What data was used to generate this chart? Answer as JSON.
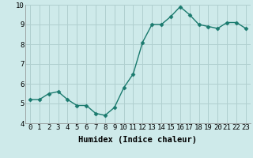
{
  "x": [
    0,
    1,
    2,
    3,
    4,
    5,
    6,
    7,
    8,
    9,
    10,
    11,
    12,
    13,
    14,
    15,
    16,
    17,
    18,
    19,
    20,
    21,
    22,
    23
  ],
  "y": [
    5.2,
    5.2,
    5.5,
    5.6,
    5.2,
    4.9,
    4.9,
    4.5,
    4.4,
    4.8,
    5.8,
    6.5,
    8.1,
    9.0,
    9.0,
    9.4,
    9.9,
    9.5,
    9.0,
    8.9,
    8.8,
    9.1,
    9.1,
    8.8
  ],
  "line_color": "#1a7a6e",
  "marker": "D",
  "marker_size": 2.5,
  "bg_color": "#ceeaea",
  "grid_color": "#b0cfcf",
  "xlabel": "Humidex (Indice chaleur)",
  "ylim": [
    4,
    10
  ],
  "xlim": [
    -0.5,
    23.5
  ],
  "yticks": [
    4,
    5,
    6,
    7,
    8,
    9,
    10
  ],
  "xticks": [
    0,
    1,
    2,
    3,
    4,
    5,
    6,
    7,
    8,
    9,
    10,
    11,
    12,
    13,
    14,
    15,
    16,
    17,
    18,
    19,
    20,
    21,
    22,
    23
  ],
  "xtick_labels": [
    "0",
    "1",
    "2",
    "3",
    "4",
    "5",
    "6",
    "7",
    "8",
    "9",
    "10",
    "11",
    "12",
    "13",
    "14",
    "15",
    "16",
    "17",
    "18",
    "19",
    "20",
    "21",
    "22",
    "23"
  ],
  "tick_fontsize": 6.5,
  "xlabel_fontsize": 7.5
}
